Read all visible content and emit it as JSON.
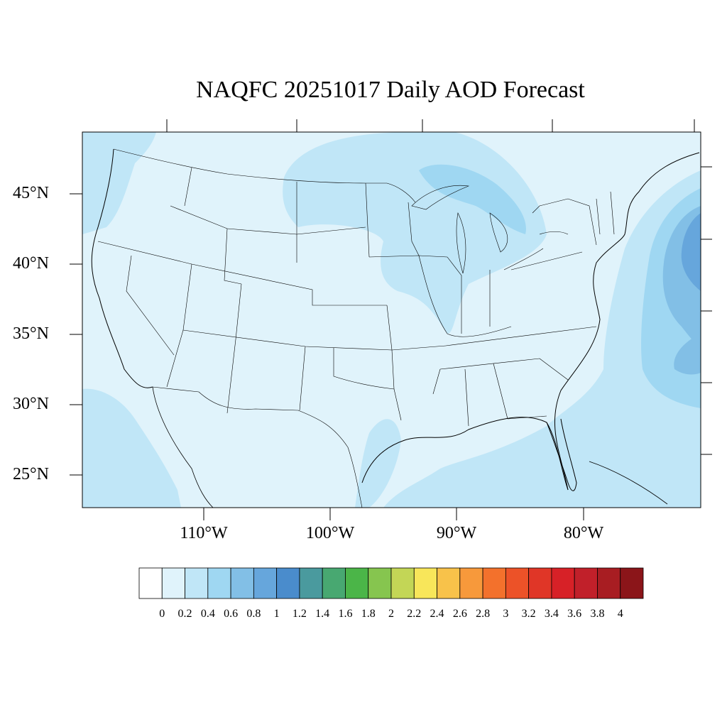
{
  "title": "NAQFC 20251017 Daily AOD Forecast",
  "latitude_labels": [
    "45°N",
    "40°N",
    "35°N",
    "30°N",
    "25°N"
  ],
  "longitude_labels": [
    "110°W",
    "100°W",
    "90°W",
    "80°W"
  ],
  "colorbar": {
    "tick_labels": [
      "0",
      "0.2",
      "0.4",
      "0.6",
      "0.8",
      "1",
      "1.2",
      "1.4",
      "1.6",
      "1.8",
      "2",
      "2.2",
      "2.4",
      "2.6",
      "2.8",
      "3",
      "3.2",
      "3.4",
      "3.6",
      "3.8",
      "4"
    ],
    "colors": [
      "#ffffff",
      "#e0f3fb",
      "#c0e6f7",
      "#9fd7f2",
      "#82bfe6",
      "#66a6dc",
      "#4a8ccc",
      "#4a9a9e",
      "#48a871",
      "#4bb548",
      "#86c54f",
      "#c3d656",
      "#f8e65a",
      "#f8c24a",
      "#f7993b",
      "#f3712c",
      "#ec5228",
      "#e03627",
      "#d72127",
      "#c1202a",
      "#a81d22",
      "#8b1519"
    ]
  },
  "colors": {
    "background_aod": "#e0f3fb",
    "aod_0_2_0_4": "#c0e6f7",
    "aod_0_4_0_6": "#9fd7f2",
    "aod_0_6_0_8": "#82bfe6",
    "aod_0_8_1_0": "#66a6dc"
  }
}
